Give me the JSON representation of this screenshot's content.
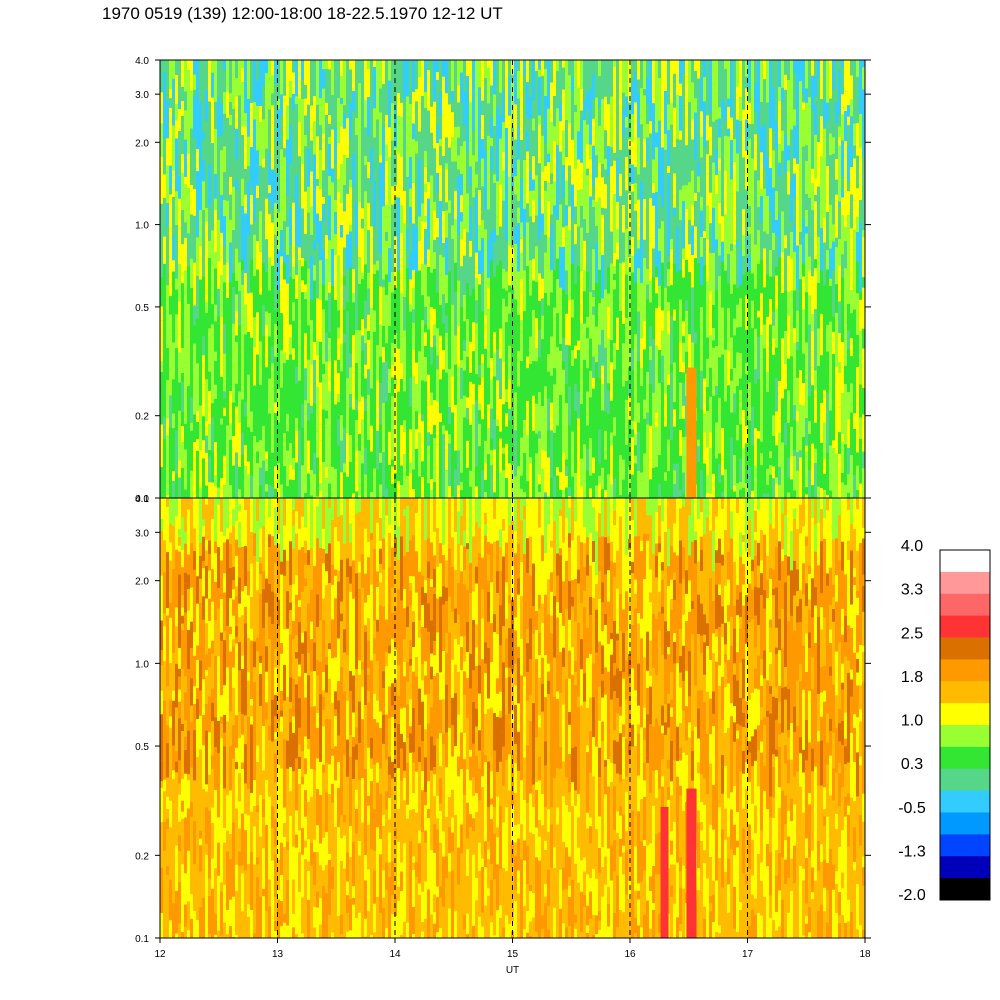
{
  "title": "1970 0519 (139) 12:00-18:00 18-22.5.1970  12-12 UT",
  "chart_data": [
    {
      "type": "heatmap",
      "panel": "top",
      "x": [
        12,
        13,
        14,
        15,
        16,
        17,
        18
      ],
      "xlim": [
        12,
        18
      ],
      "y_scale": "log",
      "ylim": [
        0.1,
        4.0
      ],
      "y_ticks": [
        0.1,
        0.2,
        0.5,
        1.0,
        2.0,
        3.0,
        4.0
      ],
      "y_tick_labels": [
        "0.1",
        "0.2",
        "0.5",
        "1.0",
        "2.0",
        "3.0",
        "4.0"
      ],
      "vertical_dashed_lines_at": [
        13,
        14,
        15,
        16,
        17
      ],
      "dominant_colors": [
        "#33e633",
        "#99ff33",
        "#ffff00",
        "#55d688",
        "#33ccff"
      ]
    },
    {
      "type": "heatmap",
      "panel": "bottom",
      "x": [
        12,
        13,
        14,
        15,
        16,
        17,
        18
      ],
      "xlim": [
        12,
        18
      ],
      "y_scale": "log",
      "ylim": [
        0.1,
        4.0
      ],
      "y_ticks": [
        0.1,
        0.2,
        0.5,
        1.0,
        2.0,
        3.0,
        4.0
      ],
      "y_tick_labels": [
        "0.1",
        "0.2",
        "0.5",
        "1.0",
        "2.0",
        "3.0",
        "4.0"
      ],
      "vertical_dashed_lines_at": [
        13,
        14,
        15,
        16,
        17
      ],
      "dominant_colors": [
        "#ffbb00",
        "#ff9900",
        "#d97000",
        "#ffff00",
        "#ff3333"
      ]
    }
  ],
  "x_axis": {
    "label": "UT",
    "tick_labels": [
      "12",
      "13",
      "14",
      "15",
      "16",
      "17",
      "18"
    ]
  },
  "colorbar": {
    "labels": [
      "4.0",
      "3.3",
      "2.5",
      "1.8",
      "1.0",
      "0.3",
      "-0.5",
      "-1.3",
      "-2.0"
    ],
    "colors_top_to_bottom": [
      "#ffffff",
      "#ff9999",
      "#ff6666",
      "#ff3333",
      "#d97000",
      "#ff9900",
      "#ffbb00",
      "#ffff00",
      "#99ff33",
      "#33e633",
      "#55d688",
      "#33ccff",
      "#0099ff",
      "#0044ff",
      "#0000bb",
      "#000000"
    ]
  }
}
